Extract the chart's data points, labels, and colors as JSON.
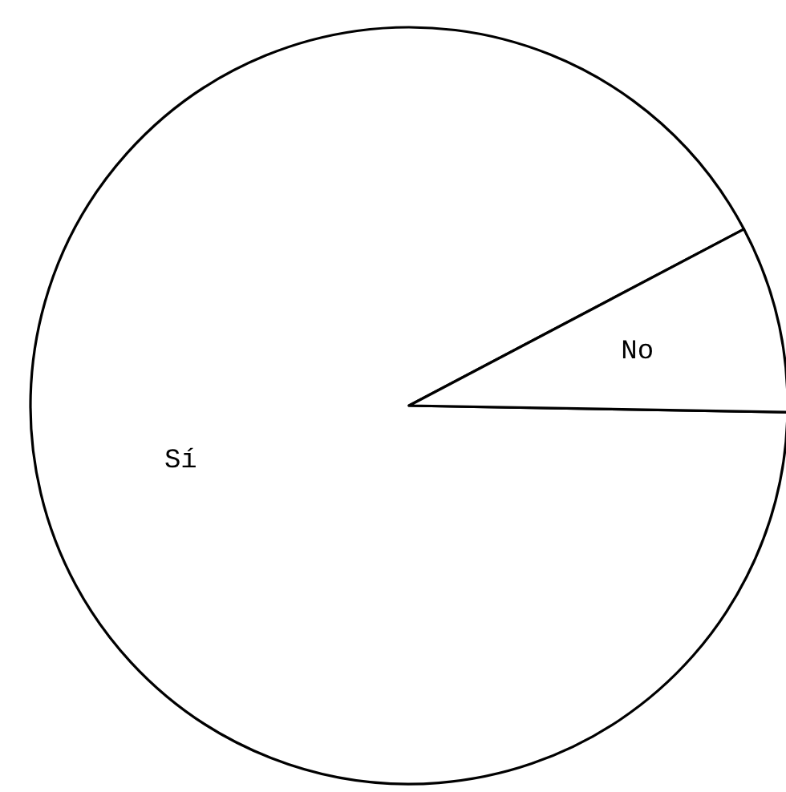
{
  "chart_data": {
    "type": "pie",
    "categories": [
      "Sí",
      "No"
    ],
    "values": [
      92,
      8
    ],
    "colors": [
      "#ffffff",
      "#ffffff"
    ]
  }
}
